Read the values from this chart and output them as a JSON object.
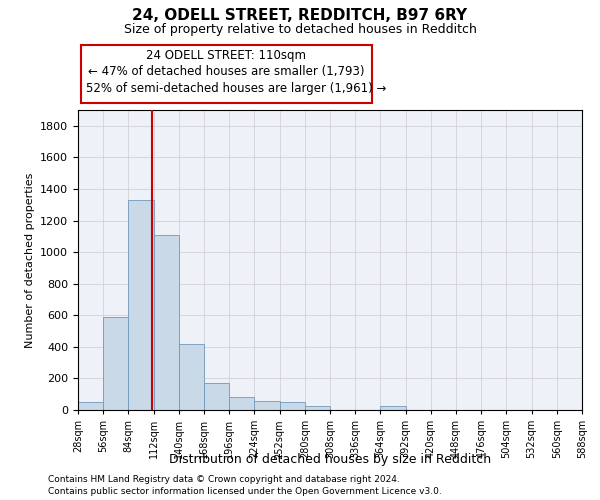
{
  "title": "24, ODELL STREET, REDDITCH, B97 6RY",
  "subtitle": "Size of property relative to detached houses in Redditch",
  "xlabel": "Distribution of detached houses by size in Redditch",
  "ylabel": "Number of detached properties",
  "footnote1": "Contains HM Land Registry data © Crown copyright and database right 2024.",
  "footnote2": "Contains public sector information licensed under the Open Government Licence v3.0.",
  "annotation_line1": "24 ODELL STREET: 110sqm",
  "annotation_line2": "← 47% of detached houses are smaller (1,793)",
  "annotation_line3": "52% of semi-detached houses are larger (1,961) →",
  "bar_color": "#c9d9e8",
  "bar_edge_color": "#7099bb",
  "grid_color": "#cccccc",
  "vline_color": "#cc0000",
  "annotation_box_edge": "#cc0000",
  "bin_edges": [
    28,
    56,
    84,
    112,
    140,
    168,
    196,
    224,
    252,
    280,
    308,
    336,
    364,
    392,
    420,
    448,
    476,
    504,
    532,
    560,
    588
  ],
  "bar_values": [
    50,
    590,
    1330,
    1110,
    415,
    170,
    80,
    60,
    50,
    25,
    0,
    0,
    25,
    0,
    0,
    0,
    0,
    0,
    0,
    0
  ],
  "vline_x": 110,
  "ylim": [
    0,
    1900
  ],
  "yticks": [
    0,
    200,
    400,
    600,
    800,
    1000,
    1200,
    1400,
    1600,
    1800
  ],
  "background_color": "#ffffff",
  "plot_background": "#eef2f8"
}
